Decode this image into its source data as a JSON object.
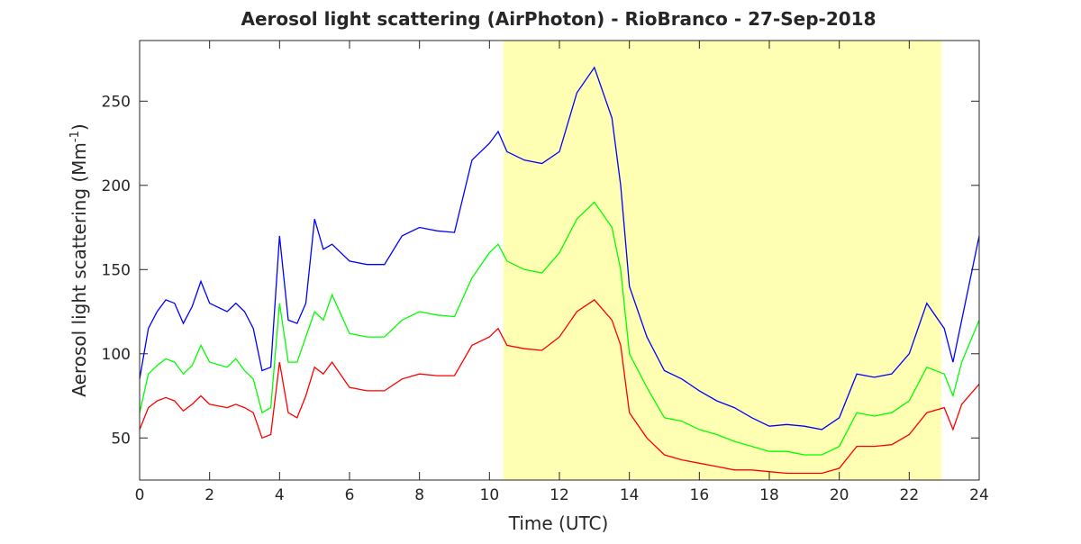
{
  "chart_data": {
    "type": "line",
    "title": "Aerosol light scattering (AirPhoton) - RioBranco - 27-Sep-2018",
    "xlabel": "Time (UTC)",
    "ylabel_parts": [
      "Aerosol light scattering (Mm",
      "-1",
      ")"
    ],
    "x": [
      0,
      0.25,
      0.5,
      0.75,
      1,
      1.25,
      1.5,
      1.75,
      2,
      2.5,
      2.75,
      3,
      3.25,
      3.5,
      3.75,
      4,
      4.25,
      4.5,
      4.75,
      5,
      5.25,
      5.5,
      6,
      6.5,
      7,
      7.5,
      8,
      8.5,
      9,
      9.5,
      10,
      10.25,
      10.5,
      11,
      11.5,
      12,
      12.5,
      13,
      13.5,
      13.75,
      14,
      14.5,
      15,
      15.5,
      16,
      16.5,
      17,
      17.5,
      18,
      18.5,
      19,
      19.5,
      20,
      20.5,
      21,
      21.5,
      22,
      22.5,
      23,
      23.25,
      23.5,
      24
    ],
    "series": [
      {
        "color": "#0000ff",
        "values": [
          85,
          115,
          125,
          132,
          130,
          118,
          128,
          143,
          130,
          125,
          130,
          125,
          115,
          90,
          92,
          170,
          120,
          118,
          130,
          180,
          162,
          165,
          155,
          153,
          153,
          170,
          175,
          173,
          172,
          215,
          225,
          232,
          220,
          215,
          213,
          220,
          255,
          270,
          240,
          200,
          140,
          110,
          90,
          85,
          78,
          72,
          68,
          62,
          57,
          58,
          57,
          55,
          62,
          88,
          86,
          88,
          100,
          130,
          115,
          95,
          120,
          170
        ]
      },
      {
        "color": "#00ff00",
        "values": [
          65,
          88,
          93,
          97,
          95,
          88,
          93,
          105,
          95,
          92,
          97,
          90,
          85,
          65,
          68,
          130,
          95,
          95,
          110,
          125,
          120,
          135,
          112,
          110,
          110,
          120,
          125,
          123,
          122,
          145,
          160,
          165,
          155,
          150,
          148,
          160,
          180,
          190,
          175,
          150,
          100,
          80,
          62,
          60,
          55,
          52,
          48,
          45,
          42,
          42,
          40,
          40,
          45,
          65,
          63,
          65,
          72,
          92,
          88,
          75,
          95,
          120
        ]
      },
      {
        "color": "#ff0000",
        "values": [
          55,
          68,
          72,
          74,
          72,
          66,
          70,
          75,
          70,
          68,
          70,
          68,
          65,
          50,
          52,
          95,
          65,
          62,
          75,
          92,
          88,
          95,
          80,
          78,
          78,
          85,
          88,
          87,
          87,
          105,
          110,
          115,
          105,
          103,
          102,
          110,
          125,
          132,
          120,
          105,
          65,
          50,
          40,
          37,
          35,
          33,
          31,
          31,
          30,
          29,
          29,
          29,
          32,
          45,
          45,
          46,
          52,
          65,
          68,
          55,
          70,
          82
        ]
      }
    ],
    "shaded_region": [
      10.4,
      22.92
    ],
    "shade_color": "#ffffb4",
    "xlim": [
      0,
      24
    ],
    "xticks": [
      0,
      2,
      4,
      6,
      8,
      10,
      12,
      14,
      16,
      18,
      20,
      22,
      24
    ],
    "ylim": [
      25,
      286
    ],
    "yticks": [
      50,
      100,
      150,
      200,
      250
    ]
  }
}
